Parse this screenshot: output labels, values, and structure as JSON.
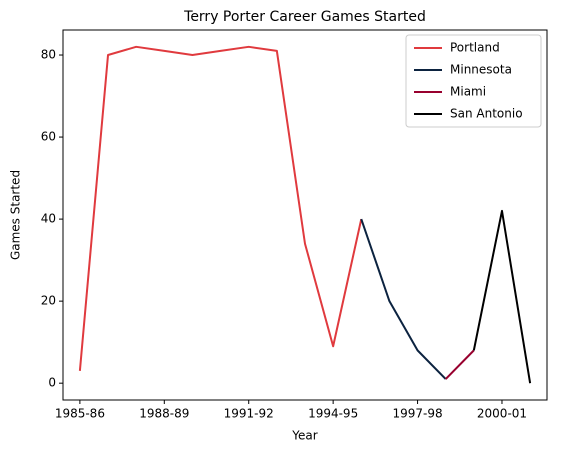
{
  "chart_data": {
    "type": "line",
    "title": "Terry Porter Career Games Started",
    "xlabel": "Year",
    "ylabel": "Games Started",
    "categories": [
      "1985-86",
      null,
      null,
      "1988-89",
      null,
      null,
      "1991-92",
      null,
      null,
      "1994-95",
      null,
      null,
      "1997-98",
      null,
      null,
      "2000-01",
      null
    ],
    "series": [
      {
        "name": "Portland",
        "color": "#e03a3e",
        "values": [
          3,
          80,
          82,
          81,
          80,
          81,
          82,
          81,
          34,
          9,
          40,
          null,
          null,
          null,
          null,
          null,
          null
        ]
      },
      {
        "name": "Minnesota",
        "color": "#0c2340",
        "values": [
          null,
          null,
          null,
          null,
          null,
          null,
          null,
          null,
          null,
          null,
          40,
          20,
          8,
          1,
          null,
          null,
          null
        ]
      },
      {
        "name": "Miami",
        "color": "#98002e",
        "values": [
          null,
          null,
          null,
          null,
          null,
          null,
          null,
          null,
          null,
          null,
          null,
          null,
          null,
          1,
          8,
          null,
          null
        ]
      },
      {
        "name": "San Antonio",
        "color": "#000000",
        "values": [
          null,
          null,
          null,
          null,
          null,
          null,
          null,
          null,
          null,
          null,
          null,
          null,
          null,
          null,
          8,
          42,
          0
        ]
      }
    ],
    "ylim": [
      -4.1,
      86.1
    ],
    "yticks": [
      0,
      20,
      40,
      60,
      80
    ],
    "grid": false,
    "legend": "upper right"
  }
}
